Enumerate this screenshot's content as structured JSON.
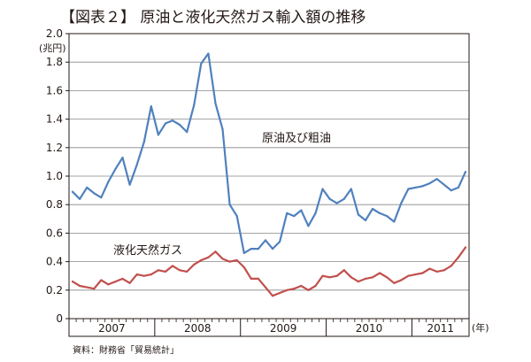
{
  "chart_data": {
    "type": "line",
    "title": "【図表２】 原油と液化天然ガス輸入額の推移",
    "ylabel": "(兆円)",
    "xlabel": "(年)",
    "ylim": [
      0,
      2.0
    ],
    "yticks": [
      "0",
      "0.2",
      "0.4",
      "0.6",
      "0.8",
      "1.0",
      "1.2",
      "1.4",
      "1.6",
      "1.8",
      "2.0"
    ],
    "year_groups": [
      {
        "label": "2007",
        "months": 12
      },
      {
        "label": "2008",
        "months": 12
      },
      {
        "label": "2009",
        "months": 12
      },
      {
        "label": "2010",
        "months": 12
      },
      {
        "label": "2011",
        "months": 8
      }
    ],
    "months_per_year": 12,
    "grid": true,
    "series": [
      {
        "name": "原油及び粗油",
        "color": "#4f81bd",
        "values": [
          0.89,
          0.84,
          0.92,
          0.88,
          0.85,
          0.96,
          1.05,
          1.13,
          0.94,
          1.08,
          1.24,
          1.49,
          1.29,
          1.37,
          1.39,
          1.36,
          1.31,
          1.5,
          1.79,
          1.86,
          1.51,
          1.33,
          0.8,
          0.72,
          0.46,
          0.49,
          0.49,
          0.55,
          0.49,
          0.54,
          0.74,
          0.72,
          0.76,
          0.65,
          0.74,
          0.91,
          0.84,
          0.81,
          0.84,
          0.91,
          0.73,
          0.69,
          0.77,
          0.74,
          0.72,
          0.68,
          0.81,
          0.91,
          0.92,
          0.93,
          0.95,
          0.98,
          0.94,
          0.9,
          0.92,
          1.03
        ]
      },
      {
        "name": "液化天然ガス",
        "color": "#c0504d",
        "values": [
          0.26,
          0.23,
          0.22,
          0.21,
          0.27,
          0.24,
          0.26,
          0.28,
          0.25,
          0.31,
          0.3,
          0.31,
          0.34,
          0.33,
          0.37,
          0.34,
          0.33,
          0.38,
          0.41,
          0.43,
          0.47,
          0.42,
          0.4,
          0.41,
          0.36,
          0.28,
          0.28,
          0.22,
          0.16,
          0.18,
          0.2,
          0.21,
          0.23,
          0.2,
          0.23,
          0.3,
          0.29,
          0.3,
          0.34,
          0.29,
          0.26,
          0.28,
          0.29,
          0.32,
          0.29,
          0.25,
          0.27,
          0.3,
          0.31,
          0.32,
          0.35,
          0.33,
          0.34,
          0.37,
          0.43,
          0.5
        ]
      }
    ],
    "source": "資料：財務省「貿易統計」"
  }
}
